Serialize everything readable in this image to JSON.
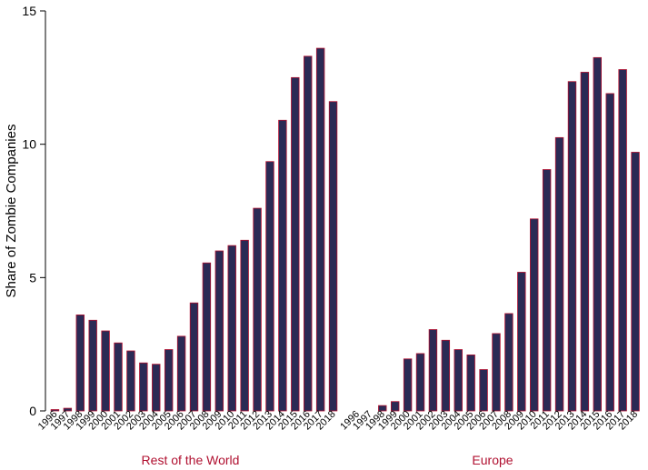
{
  "chart_data": {
    "type": "bar",
    "ylabel": "Share of Zombie Companies",
    "ylim": [
      0,
      15
    ],
    "yticks": [
      0,
      5,
      10,
      15
    ],
    "grid": false,
    "colors": {
      "bar_fill": "#2a2a55",
      "bar_edge": "#b01030",
      "group_label": "#b01030"
    },
    "categories": [
      "1996",
      "1997",
      "1998",
      "1999",
      "2000",
      "2001",
      "2002",
      "2003",
      "2004",
      "2005",
      "2006",
      "2007",
      "2008",
      "2009",
      "2010",
      "2011",
      "2012",
      "2013",
      "2014",
      "2015",
      "2016",
      "2017",
      "2018"
    ],
    "groups": [
      {
        "label": "Rest of the World",
        "values": [
          0.05,
          0.1,
          3.6,
          3.4,
          3.0,
          2.55,
          2.25,
          1.8,
          1.75,
          2.3,
          2.8,
          4.05,
          5.55,
          6.0,
          6.2,
          6.4,
          7.6,
          9.35,
          10.9,
          12.5,
          13.3,
          13.6,
          11.6
        ]
      },
      {
        "label": "Europe",
        "values": [
          0.0,
          0.0,
          0.2,
          0.35,
          1.95,
          2.15,
          3.05,
          2.65,
          2.3,
          2.1,
          1.55,
          2.9,
          3.65,
          5.2,
          7.2,
          9.05,
          10.25,
          12.35,
          12.7,
          13.25,
          11.9,
          12.8,
          9.7
        ]
      }
    ]
  }
}
